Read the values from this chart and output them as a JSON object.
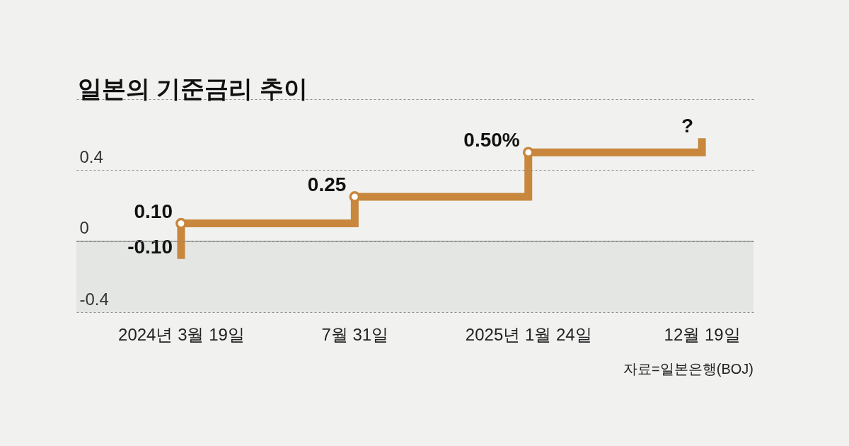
{
  "chart_data": {
    "type": "step",
    "title": "일본의 기준금리 추이",
    "categories": [
      "2024년 3월 19일",
      "7월 31일",
      "2025년 1월 24일",
      "12월 19일"
    ],
    "series": [
      {
        "color": "#c8873c",
        "x": [
          "2024년 3월 19일",
          "2024년 3월 19일",
          "7월 31일",
          "2025년 1월 24일",
          "12월 19일"
        ],
        "values": [
          -0.1,
          0.1,
          0.25,
          0.5,
          0.58
        ],
        "value_labels": [
          "-0.10",
          "0.10",
          "0.25",
          "0.50%",
          "?"
        ]
      },
      {
        "type": "scatter",
        "color": "#c8873c",
        "marker": "circle",
        "x": [
          "2024년 3월 19일",
          "7월 31일",
          "2025년 1월 24일"
        ],
        "values": [
          0.1,
          0.25,
          0.5
        ]
      }
    ],
    "ylim": [
      -0.4,
      0.8
    ],
    "yticks": [
      -0.4,
      0,
      0.4,
      {
        "value": 0.8,
        "label": null
      }
    ],
    "grid": "y",
    "bands": [
      {
        "axis": "y",
        "from": -0.4,
        "to": 0,
        "color": "#e4e6e4"
      }
    ],
    "ref_lines": [
      {
        "axis": "y",
        "value": 0,
        "color": "#9a9a9a",
        "line_style": "solid"
      }
    ],
    "annotations": [
      "자료=일본은행(BOJ)"
    ]
  }
}
